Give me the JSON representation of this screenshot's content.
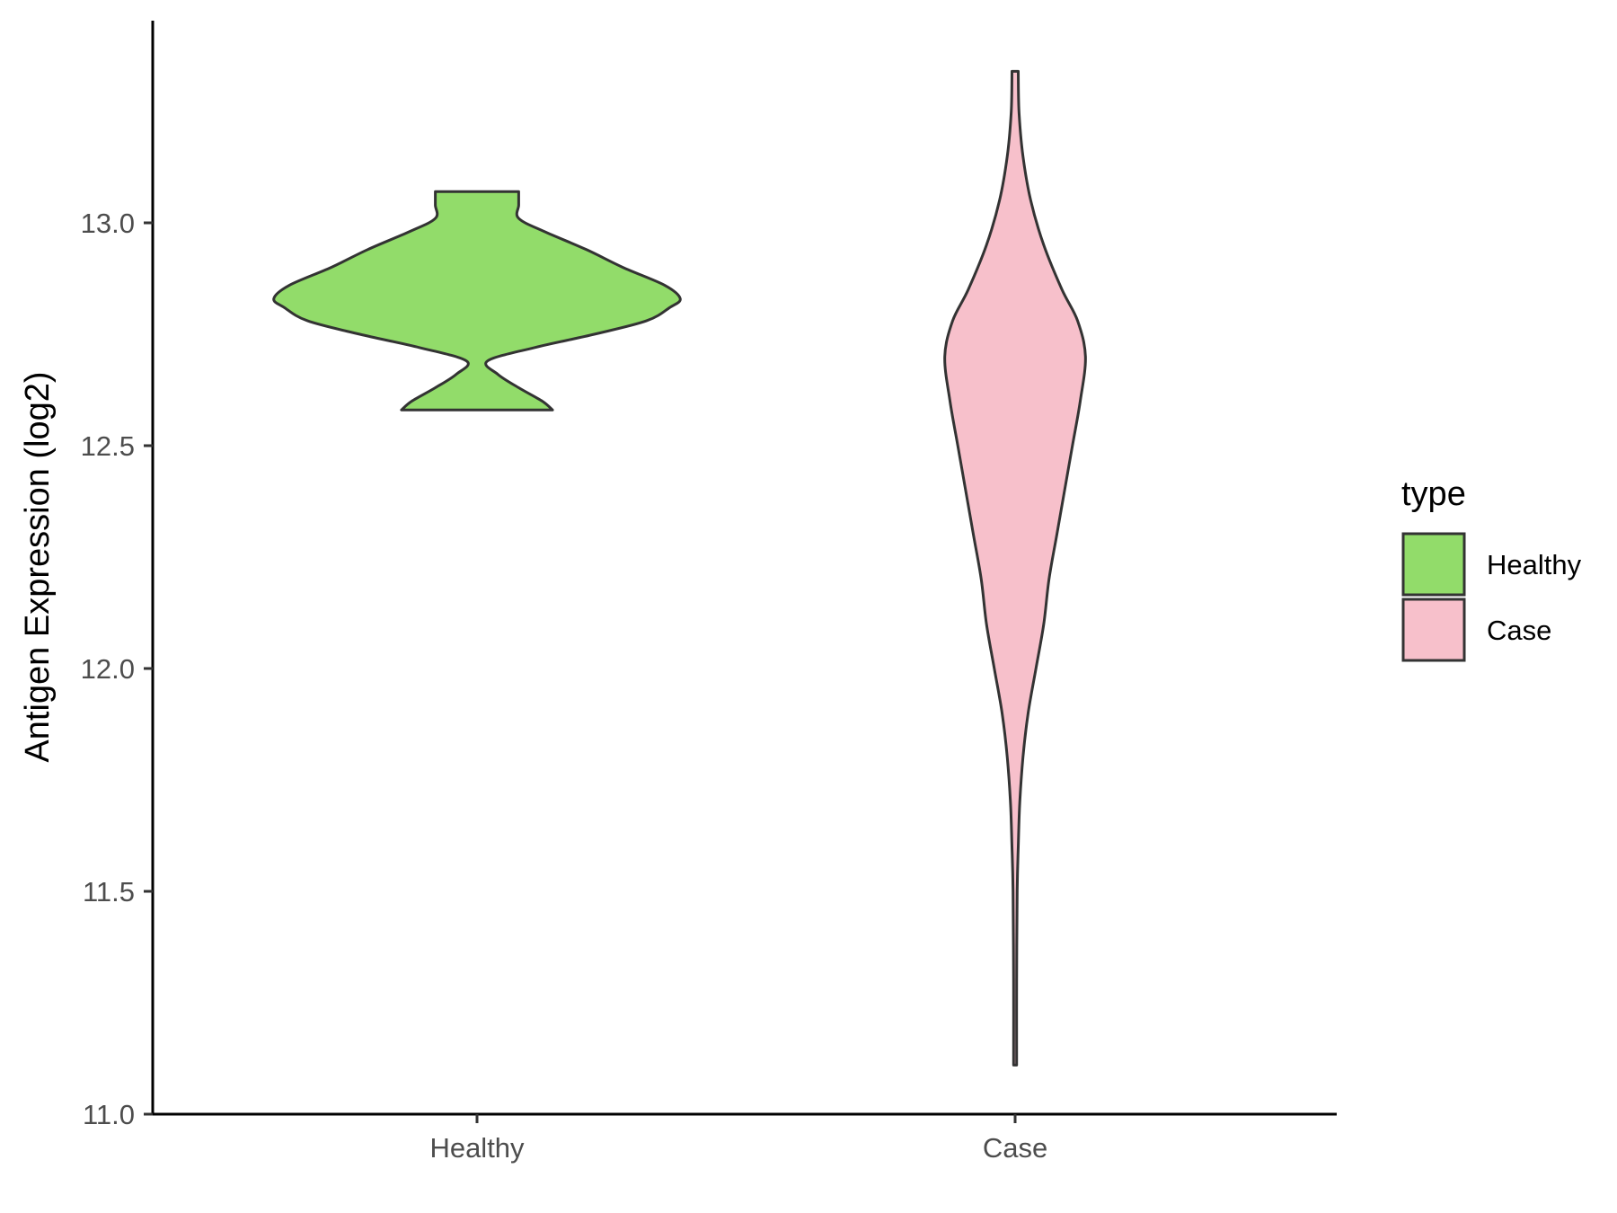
{
  "chart_data": {
    "type": "violin",
    "title": "",
    "xlabel": "",
    "ylabel": "Antigen Expression (log2)",
    "ylim": [
      11.0,
      13.5
    ],
    "yticks": [
      "11.0",
      "11.5",
      "12.0",
      "12.5",
      "13.0"
    ],
    "categories": [
      "Healthy",
      "Case"
    ],
    "grid": false,
    "legend": {
      "title": "type",
      "placement": "right",
      "entries": [
        {
          "label": "Healthy",
          "color": "#92dc6a"
        },
        {
          "label": "Case",
          "color": "#f7c0cb"
        }
      ]
    },
    "series": [
      {
        "name": "Healthy",
        "color": "#92dc6a",
        "range": [
          12.58,
          13.07
        ],
        "density_profile": [
          [
            12.58,
            0.29
          ],
          [
            12.6,
            0.25
          ],
          [
            12.63,
            0.16
          ],
          [
            12.66,
            0.08
          ],
          [
            12.69,
            0.04
          ],
          [
            12.72,
            0.22
          ],
          [
            12.75,
            0.45
          ],
          [
            12.78,
            0.65
          ],
          [
            12.81,
            0.74
          ],
          [
            12.83,
            0.78
          ],
          [
            12.86,
            0.72
          ],
          [
            12.9,
            0.56
          ],
          [
            12.94,
            0.42
          ],
          [
            12.98,
            0.26
          ],
          [
            13.01,
            0.16
          ],
          [
            13.04,
            0.16
          ],
          [
            13.07,
            0.16
          ]
        ]
      },
      {
        "name": "Case",
        "color": "#f7c0cb",
        "range": [
          11.11,
          13.34
        ],
        "density_profile": [
          [
            11.11,
            0.006
          ],
          [
            11.3,
            0.006
          ],
          [
            11.5,
            0.008
          ],
          [
            11.6,
            0.012
          ],
          [
            11.7,
            0.018
          ],
          [
            11.8,
            0.03
          ],
          [
            11.9,
            0.05
          ],
          [
            12.0,
            0.08
          ],
          [
            12.1,
            0.11
          ],
          [
            12.2,
            0.13
          ],
          [
            12.3,
            0.16
          ],
          [
            12.4,
            0.19
          ],
          [
            12.5,
            0.22
          ],
          [
            12.6,
            0.25
          ],
          [
            12.7,
            0.27
          ],
          [
            12.78,
            0.24
          ],
          [
            12.85,
            0.18
          ],
          [
            12.95,
            0.11
          ],
          [
            13.05,
            0.06
          ],
          [
            13.15,
            0.03
          ],
          [
            13.25,
            0.015
          ],
          [
            13.34,
            0.012
          ]
        ]
      }
    ]
  }
}
